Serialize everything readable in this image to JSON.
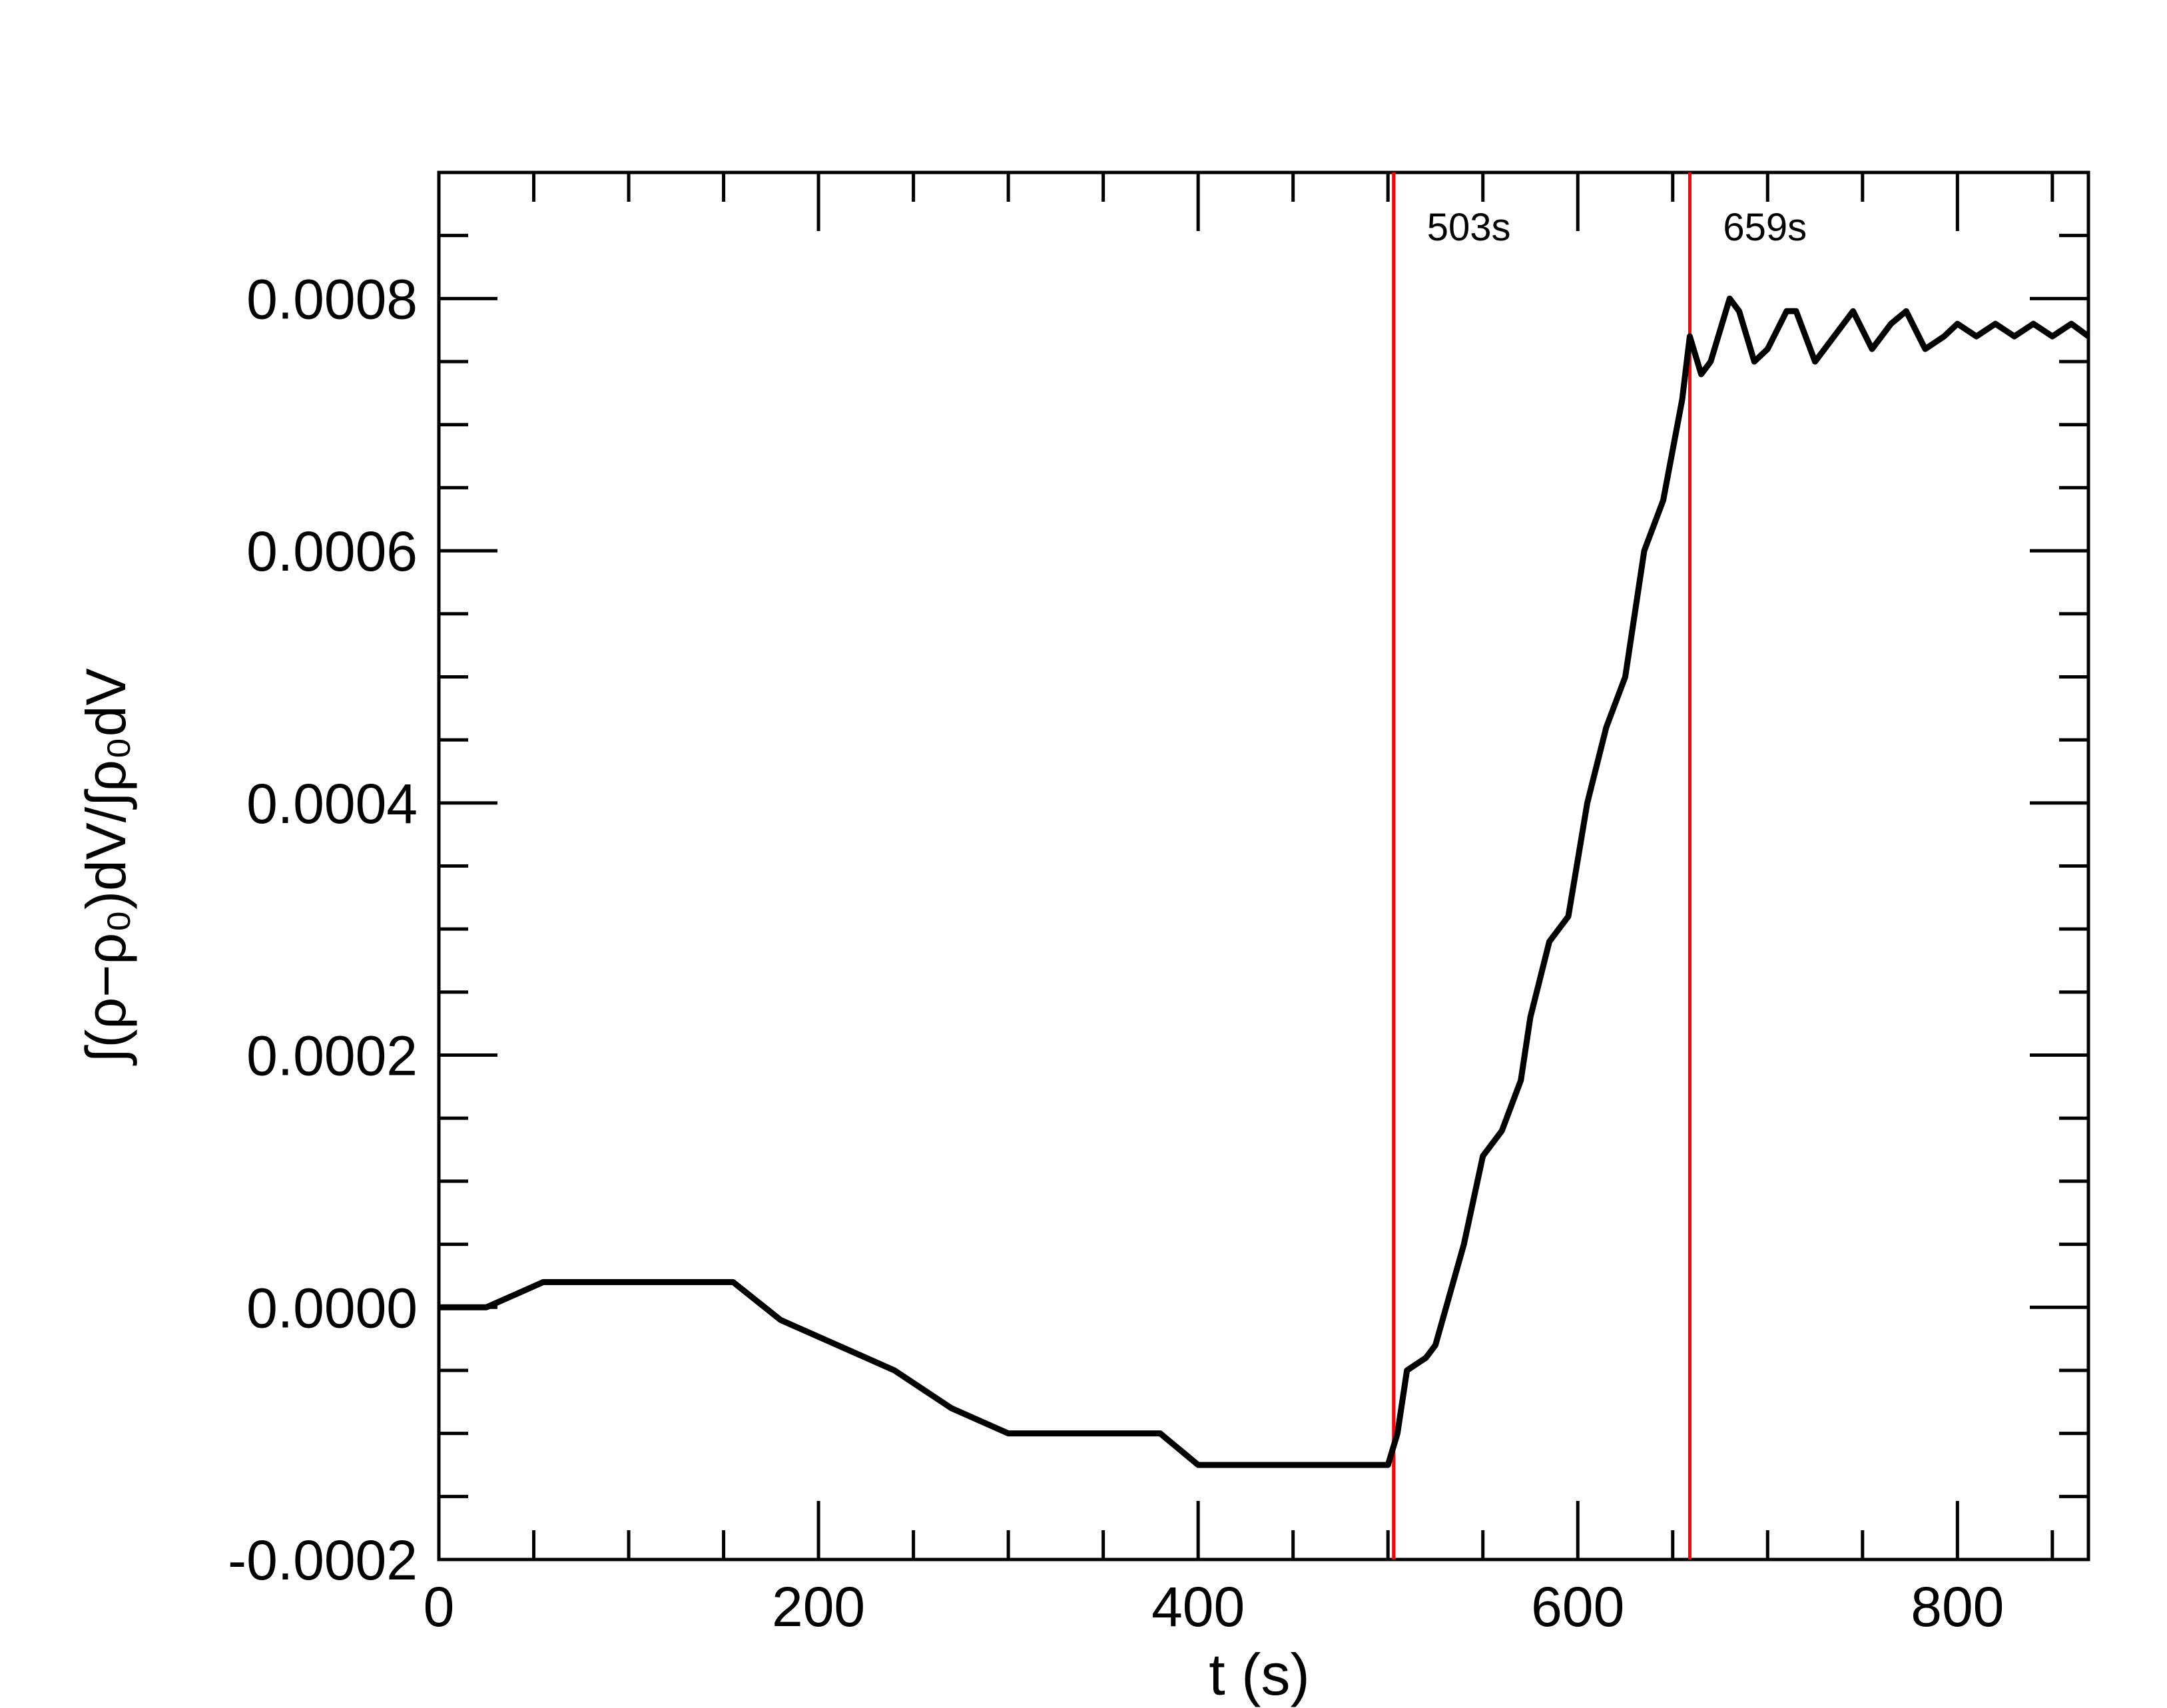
{
  "chart_data": {
    "type": "line",
    "x_label": "t (s)",
    "y_label": "∫(ρ−ρ₀)dV/∫ρ₀dV",
    "xlim": [
      0,
      869
    ],
    "ylim": [
      -0.0002,
      0.0009
    ],
    "xticks": [
      0,
      200,
      400,
      600,
      800
    ],
    "yticks": [
      -0.0002,
      {
        "value": 0,
        "label": "0.0000"
      },
      0.0002,
      0.0004,
      0.0006,
      0.0008
    ],
    "annotations": [
      {
        "x": 503,
        "label": "503s",
        "color": "#ff0000"
      },
      {
        "x": 659,
        "label": "659s",
        "color": "#ff0000"
      }
    ],
    "series": [
      {
        "color": "#000000",
        "x": [
          0,
          25,
          40,
          55,
          100,
          155,
          180,
          210,
          240,
          270,
          300,
          310,
          345,
          380,
          400,
          450,
          500,
          505,
          510,
          520,
          525,
          540,
          550,
          560,
          570,
          575,
          585,
          595,
          605,
          615,
          625,
          635,
          645,
          655,
          659,
          665,
          670,
          680,
          685,
          693,
          700,
          710,
          715,
          725,
          735,
          745,
          755,
          765,
          773,
          783,
          793,
          800,
          810,
          820,
          830,
          840,
          850,
          860,
          869
        ],
        "values": [
          0,
          0,
          1e-05,
          2e-05,
          2e-05,
          2e-05,
          -1e-05,
          -3e-05,
          -5e-05,
          -8e-05,
          -0.0001,
          -0.0001,
          -0.0001,
          -0.0001,
          -0.000125,
          -0.000125,
          -0.000125,
          -0.0001,
          -5e-05,
          -4e-05,
          -3e-05,
          5e-05,
          0.00012,
          0.00014,
          0.00018,
          0.00023,
          0.00029,
          0.00031,
          0.0004,
          0.00046,
          0.0005,
          0.0006,
          0.00064,
          0.00072,
          0.00077,
          0.00074,
          0.00075,
          0.0008,
          0.00079,
          0.00075,
          0.00076,
          0.00079,
          0.00079,
          0.00075,
          0.00077,
          0.00079,
          0.00076,
          0.00078,
          0.00079,
          0.00076,
          0.00077,
          0.00078,
          0.00077,
          0.00078,
          0.00077,
          0.00078,
          0.00077,
          0.00078,
          0.00077
        ]
      }
    ]
  }
}
